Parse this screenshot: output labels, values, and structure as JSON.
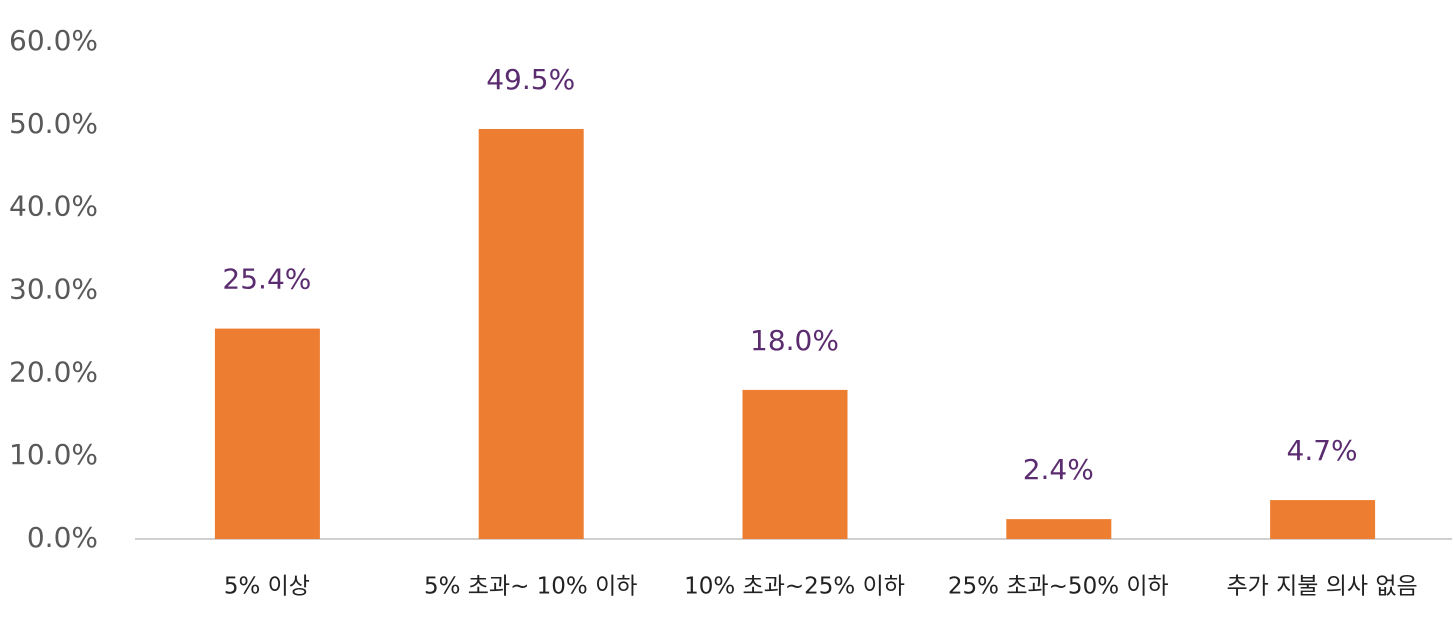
{
  "chart_data": {
    "type": "bar",
    "categories": [
      "5% 이상",
      "5% 초과~ 10% 이하",
      "10% 초과~25% 이하",
      "25% 초과~50% 이하",
      "추가 지불 의사 없음"
    ],
    "values": [
      25.4,
      49.5,
      18.0,
      2.4,
      4.7
    ],
    "value_labels": [
      "25.4%",
      "49.5%",
      "18.0%",
      "2.4%",
      "4.7%"
    ],
    "color": "#ed7d31",
    "ylim": [
      0,
      60
    ],
    "yticks": [
      {
        "value": 0,
        "label": "0.0%"
      },
      {
        "value": 10,
        "label": "10.0%"
      },
      {
        "value": 20,
        "label": "20.0%"
      },
      {
        "value": 30,
        "label": "30.0%"
      },
      {
        "value": 40,
        "label": "40.0%"
      },
      {
        "value": 50,
        "label": "50.0%"
      },
      {
        "value": 60,
        "label": "60.0%"
      }
    ],
    "grid": false
  }
}
